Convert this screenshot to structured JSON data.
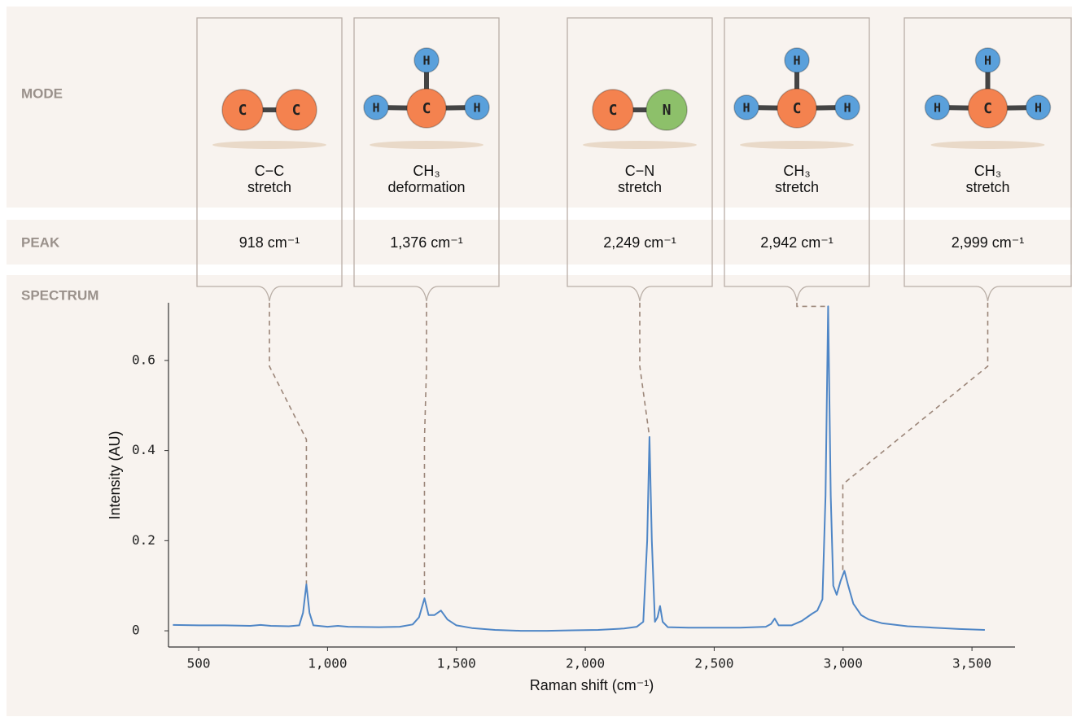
{
  "row_labels": {
    "mode": "MODE",
    "peak": "PEAK",
    "spectrum": "SPECTRUM"
  },
  "atom_colors": {
    "C": "#f4824f",
    "H": "#5aa0db",
    "N": "#8dc06a"
  },
  "modes": [
    {
      "atoms": [
        "C",
        "C"
      ],
      "line1": "C−C",
      "line2": "stretch",
      "peak": {
        "value": 918,
        "label": "918 cm⁻¹"
      }
    },
    {
      "atoms": [
        "H",
        "C",
        "H",
        "H"
      ],
      "line1": "CH₃",
      "line2": "deformation",
      "peak": {
        "value": 1376,
        "label": "1,376 cm⁻¹"
      }
    },
    {
      "atoms": [
        "C",
        "N"
      ],
      "line1": "C−N",
      "line2": "stretch",
      "peak": {
        "value": 2249,
        "label": "2,249 cm⁻¹"
      }
    },
    {
      "atoms": [
        "H",
        "C",
        "H",
        "H"
      ],
      "line1": "CH₃",
      "line2": "stretch",
      "peak": {
        "value": 2942,
        "label": "2,942 cm⁻¹"
      }
    },
    {
      "atoms": [
        "H",
        "C",
        "H",
        "H"
      ],
      "line1": "CH₃",
      "line2": "stretch",
      "peak": {
        "value": 2999,
        "label": "2,999 cm⁻¹"
      }
    }
  ],
  "chart_data": {
    "type": "line",
    "x_label": "Raman shift (cm⁻¹)",
    "y_label": "Intensity (AU)",
    "color": "#4f86c6",
    "x": [
      400,
      500,
      600,
      700,
      740,
      780,
      850,
      890,
      905,
      918,
      930,
      945,
      1000,
      1040,
      1080,
      1200,
      1280,
      1330,
      1355,
      1376,
      1392,
      1415,
      1440,
      1465,
      1500,
      1560,
      1650,
      1750,
      1850,
      1950,
      2050,
      2150,
      2200,
      2225,
      2240,
      2249,
      2258,
      2270,
      2280,
      2290,
      2300,
      2320,
      2400,
      2500,
      2600,
      2700,
      2720,
      2735,
      2750,
      2800,
      2840,
      2860,
      2880,
      2900,
      2920,
      2932,
      2942,
      2952,
      2962,
      2975,
      2990,
      3005,
      3020,
      3040,
      3070,
      3100,
      3150,
      3250,
      3350,
      3450,
      3550
    ],
    "values": [
      0.013,
      0.012,
      0.012,
      0.011,
      0.013,
      0.011,
      0.01,
      0.012,
      0.04,
      0.103,
      0.04,
      0.012,
      0.009,
      0.011,
      0.009,
      0.008,
      0.009,
      0.014,
      0.03,
      0.072,
      0.035,
      0.035,
      0.045,
      0.025,
      0.012,
      0.006,
      0.002,
      0.0,
      0.0,
      0.001,
      0.002,
      0.005,
      0.009,
      0.02,
      0.2,
      0.43,
      0.2,
      0.02,
      0.03,
      0.055,
      0.02,
      0.008,
      0.007,
      0.007,
      0.007,
      0.009,
      0.015,
      0.027,
      0.012,
      0.012,
      0.022,
      0.03,
      0.038,
      0.045,
      0.07,
      0.3,
      0.72,
      0.3,
      0.1,
      0.08,
      0.11,
      0.133,
      0.1,
      0.06,
      0.035,
      0.025,
      0.017,
      0.01,
      0.007,
      0.004,
      0.002
    ],
    "xlim": [
      383,
      3667
    ],
    "ylim": [
      -0.036,
      0.728
    ],
    "xticks": [
      500,
      {
        "value": 1000,
        "label": "1,000"
      },
      {
        "value": 1500,
        "label": "1,500"
      },
      {
        "value": 2000,
        "label": "2,000"
      },
      {
        "value": 2500,
        "label": "2,500"
      },
      {
        "value": 3000,
        "label": "3,000"
      },
      {
        "value": 3500,
        "label": "3,500"
      }
    ],
    "yticks": [
      0,
      0.2,
      0.4,
      0.6
    ]
  }
}
